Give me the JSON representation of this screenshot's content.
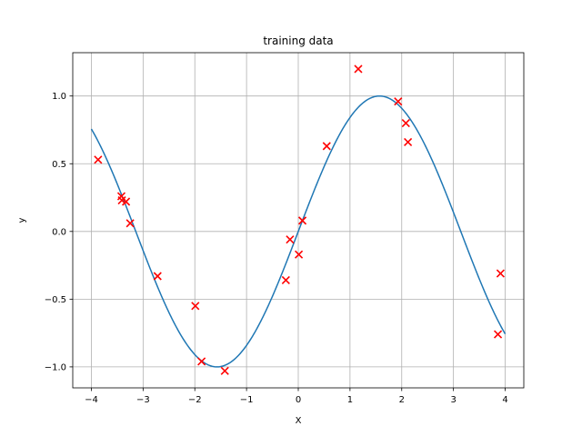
{
  "chart_data": {
    "type": "scatter",
    "title": "training data",
    "xlabel": "X",
    "ylabel": "y",
    "xlim": [
      -4.36,
      4.36
    ],
    "ylim": [
      -1.155,
      1.32
    ],
    "xticks": [
      -4,
      -3,
      -2,
      -1,
      0,
      1,
      2,
      3,
      4
    ],
    "xtick_labels": [
      "−4",
      "−3",
      "−2",
      "−1",
      "0",
      "1",
      "2",
      "3",
      "4"
    ],
    "yticks": [
      -1.0,
      -0.5,
      0.0,
      0.5,
      1.0
    ],
    "ytick_labels": [
      "−1.0",
      "−0.5",
      "0.0",
      "0.5",
      "1.0"
    ],
    "grid": true,
    "series": [
      {
        "kind": "line",
        "function": "sin(x)",
        "x_range": [
          -4,
          4
        ],
        "color": "#1f77b4"
      },
      {
        "kind": "scatter",
        "marker": "x",
        "color": "#ff0000",
        "points": [
          [
            -3.87,
            0.53
          ],
          [
            -3.42,
            0.26
          ],
          [
            -3.41,
            0.23
          ],
          [
            -3.33,
            0.22
          ],
          [
            -3.25,
            0.06
          ],
          [
            -2.72,
            -0.33
          ],
          [
            -1.99,
            -0.55
          ],
          [
            -1.87,
            -0.96
          ],
          [
            -1.42,
            -1.03
          ],
          [
            -0.24,
            -0.36
          ],
          [
            -0.16,
            -0.06
          ],
          [
            0.01,
            -0.17
          ],
          [
            0.08,
            0.08
          ],
          [
            0.55,
            0.63
          ],
          [
            1.16,
            1.2
          ],
          [
            1.93,
            0.96
          ],
          [
            2.08,
            0.8
          ],
          [
            2.12,
            0.66
          ],
          [
            3.86,
            -0.76
          ],
          [
            3.91,
            -0.31
          ]
        ]
      }
    ]
  }
}
